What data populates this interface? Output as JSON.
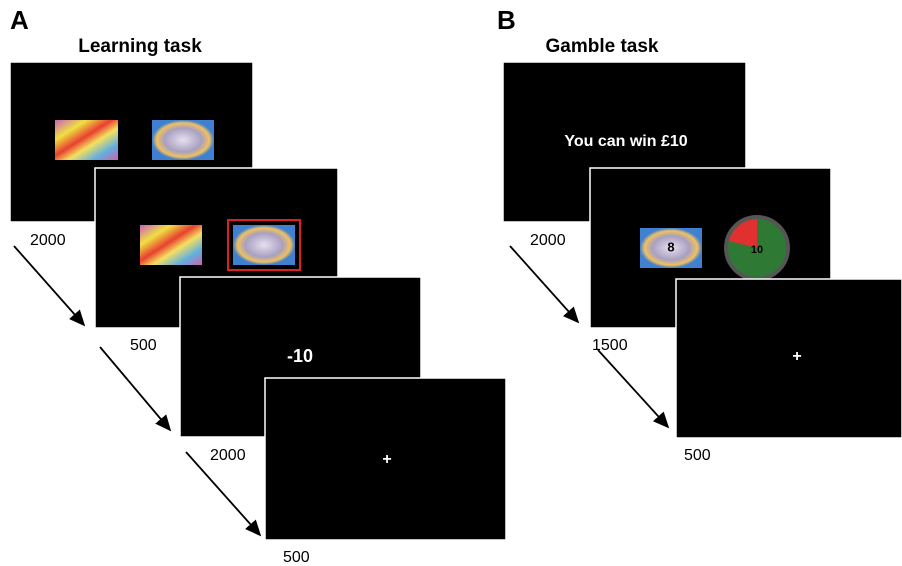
{
  "panels": [
    {
      "label": "A",
      "title": "Learning task",
      "feedback": "-10",
      "fixation": "+",
      "durations": [
        "2000",
        "500",
        "2000",
        "500"
      ]
    },
    {
      "label": "B",
      "title": "Gamble task",
      "message": "You can win £10",
      "stimulus_number": "8",
      "pie_value": "10",
      "fixation": "+",
      "durations": [
        "2000",
        "1500",
        "500"
      ]
    }
  ]
}
